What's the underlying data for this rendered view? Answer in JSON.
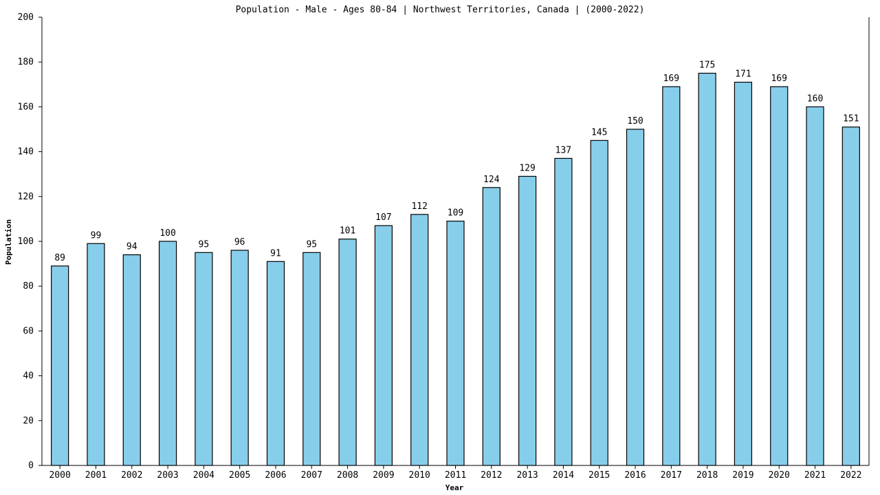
{
  "chart_data": {
    "type": "bar",
    "title": "Population - Male - Ages 80-84 | Northwest Territories, Canada |  (2000-2022)",
    "xlabel": "Year",
    "ylabel": "Population",
    "ylim": [
      0,
      200
    ],
    "yticks": [
      0,
      20,
      40,
      60,
      80,
      100,
      120,
      140,
      160,
      180,
      200
    ],
    "categories": [
      "2000",
      "2001",
      "2002",
      "2003",
      "2004",
      "2005",
      "2006",
      "2007",
      "2008",
      "2009",
      "2010",
      "2011",
      "2012",
      "2013",
      "2014",
      "2015",
      "2016",
      "2017",
      "2018",
      "2019",
      "2020",
      "2021",
      "2022"
    ],
    "values": [
      89,
      99,
      94,
      100,
      95,
      96,
      91,
      95,
      101,
      107,
      112,
      109,
      124,
      129,
      137,
      145,
      150,
      169,
      175,
      171,
      169,
      160,
      151
    ],
    "bar_color": "#87ceeb",
    "grid": false,
    "legend": "none"
  }
}
